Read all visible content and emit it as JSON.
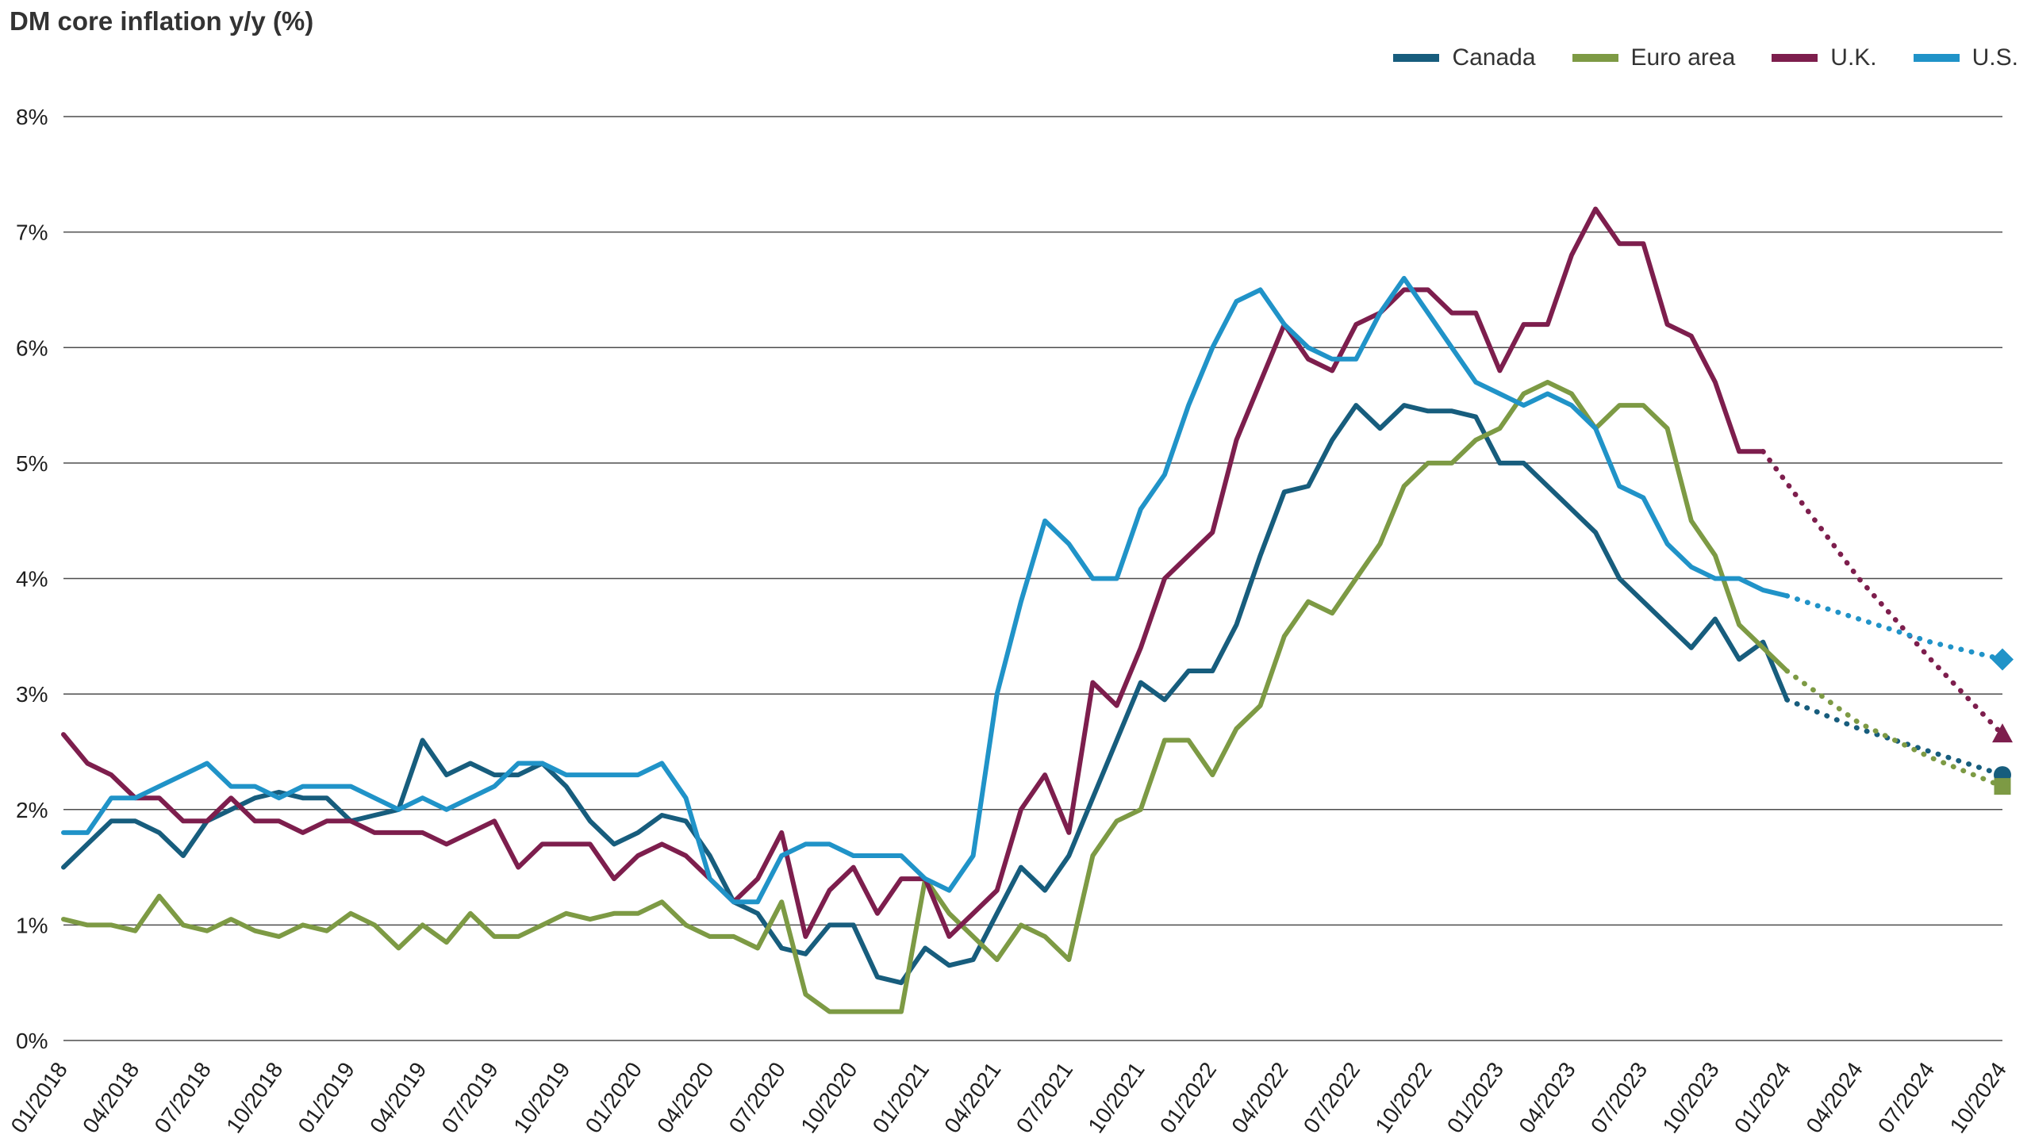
{
  "title": "DM core inflation y/y (%)",
  "chart_data": {
    "type": "line",
    "title": "DM core inflation y/y (%)",
    "xlabel": "",
    "ylabel": "DM core inflation y/y (%)",
    "ylim": [
      0,
      8
    ],
    "grid": "horizontal",
    "legend_position": "top-right",
    "y_tick_labels": [
      "0%",
      "1%",
      "2%",
      "3%",
      "4%",
      "5%",
      "6%",
      "7%",
      "8%"
    ],
    "months_count": 82,
    "x_tick_interval": 3,
    "x_tick_labels": [
      "01/2018",
      "04/2018",
      "07/2018",
      "10/2018",
      "01/2019",
      "04/2019",
      "07/2019",
      "10/2019",
      "01/2020",
      "04/2020",
      "07/2020",
      "10/2020",
      "01/2021",
      "04/2021",
      "07/2021",
      "10/2021",
      "01/2022",
      "04/2022",
      "07/2022",
      "10/2022",
      "01/2023",
      "04/2023",
      "07/2023",
      "10/2023",
      "01/2024",
      "04/2024",
      "07/2024",
      "10/2024"
    ],
    "series": [
      {
        "id": "canada",
        "name": "Canada",
        "color": "#175d7d",
        "marker": "circle",
        "solid_until_index": 72,
        "values": [
          1.5,
          1.7,
          1.9,
          1.9,
          1.8,
          1.6,
          1.9,
          2.0,
          2.1,
          2.15,
          2.1,
          2.1,
          1.9,
          1.95,
          2.0,
          2.6,
          2.3,
          2.4,
          2.3,
          2.3,
          2.4,
          2.2,
          1.9,
          1.7,
          1.8,
          1.95,
          1.9,
          1.6,
          1.2,
          1.1,
          0.8,
          0.75,
          1.0,
          1.0,
          0.55,
          0.5,
          0.8,
          0.65,
          0.7,
          1.1,
          1.5,
          1.3,
          1.6,
          2.1,
          2.6,
          3.1,
          2.95,
          3.2,
          3.2,
          3.6,
          4.2,
          4.75,
          4.8,
          5.2,
          5.5,
          5.3,
          5.5,
          5.45,
          5.45,
          5.4,
          5.0,
          5.0,
          4.8,
          4.6,
          4.4,
          4.0,
          3.8,
          3.6,
          3.4,
          3.65,
          3.3,
          3.45,
          2.95,
          null,
          null,
          2.7,
          null,
          null,
          2.5,
          null,
          null,
          2.3
        ]
      },
      {
        "id": "euro-area",
        "name": "Euro area",
        "color": "#7d9a44",
        "marker": "square",
        "solid_until_index": 72,
        "values": [
          1.05,
          1.0,
          1.0,
          0.95,
          1.25,
          1.0,
          0.95,
          1.05,
          0.95,
          0.9,
          1.0,
          0.95,
          1.1,
          1.0,
          0.8,
          1.0,
          0.85,
          1.1,
          0.9,
          0.9,
          1.0,
          1.1,
          1.05,
          1.1,
          1.1,
          1.2,
          1.0,
          0.9,
          0.9,
          0.8,
          1.2,
          0.4,
          0.25,
          0.25,
          0.25,
          0.25,
          1.4,
          1.1,
          0.9,
          0.7,
          1.0,
          0.9,
          0.7,
          1.6,
          1.9,
          2.0,
          2.6,
          2.6,
          2.3,
          2.7,
          2.9,
          3.5,
          3.8,
          3.7,
          4.0,
          4.3,
          4.8,
          5.0,
          5.0,
          5.2,
          5.3,
          5.6,
          5.7,
          5.6,
          5.3,
          5.5,
          5.5,
          5.3,
          4.5,
          4.2,
          3.6,
          3.4,
          3.2,
          null,
          null,
          2.75,
          null,
          null,
          2.45,
          null,
          null,
          2.2
        ]
      },
      {
        "id": "uk",
        "name": "U.K.",
        "color": "#7d1e4d",
        "marker": "triangle",
        "solid_until_index": 71,
        "values": [
          2.65,
          2.4,
          2.3,
          2.1,
          2.1,
          1.9,
          1.9,
          2.1,
          1.9,
          1.9,
          1.8,
          1.9,
          1.9,
          1.8,
          1.8,
          1.8,
          1.7,
          1.8,
          1.9,
          1.5,
          1.7,
          1.7,
          1.7,
          1.4,
          1.6,
          1.7,
          1.6,
          1.4,
          1.2,
          1.4,
          1.8,
          0.9,
          1.3,
          1.5,
          1.1,
          1.4,
          1.4,
          0.9,
          1.1,
          1.3,
          2.0,
          2.3,
          1.8,
          3.1,
          2.9,
          3.4,
          4.0,
          4.2,
          4.4,
          5.2,
          5.7,
          6.2,
          5.9,
          5.8,
          6.2,
          6.3,
          6.5,
          6.5,
          6.3,
          6.3,
          5.8,
          6.2,
          6.2,
          6.8,
          7.2,
          6.9,
          6.9,
          6.2,
          6.1,
          5.7,
          5.1,
          5.1,
          null,
          null,
          null,
          4.0,
          null,
          null,
          3.3,
          null,
          null,
          2.65
        ]
      },
      {
        "id": "us",
        "name": "U.S.",
        "color": "#2093c8",
        "marker": "diamond",
        "solid_until_index": 72,
        "values": [
          1.8,
          1.8,
          2.1,
          2.1,
          2.2,
          2.3,
          2.4,
          2.2,
          2.2,
          2.1,
          2.2,
          2.2,
          2.2,
          2.1,
          2.0,
          2.1,
          2.0,
          2.1,
          2.2,
          2.4,
          2.4,
          2.3,
          2.3,
          2.3,
          2.3,
          2.4,
          2.1,
          1.4,
          1.2,
          1.2,
          1.6,
          1.7,
          1.7,
          1.6,
          1.6,
          1.6,
          1.4,
          1.3,
          1.6,
          3.0,
          3.8,
          4.5,
          4.3,
          4.0,
          4.0,
          4.6,
          4.9,
          5.5,
          6.0,
          6.4,
          6.5,
          6.2,
          6.0,
          5.9,
          5.9,
          6.3,
          6.6,
          6.3,
          6.0,
          5.7,
          5.6,
          5.5,
          5.6,
          5.5,
          5.3,
          4.8,
          4.7,
          4.3,
          4.1,
          4.0,
          4.0,
          3.9,
          3.85,
          null,
          null,
          3.65,
          null,
          null,
          3.45,
          null,
          null,
          3.3
        ]
      }
    ]
  }
}
